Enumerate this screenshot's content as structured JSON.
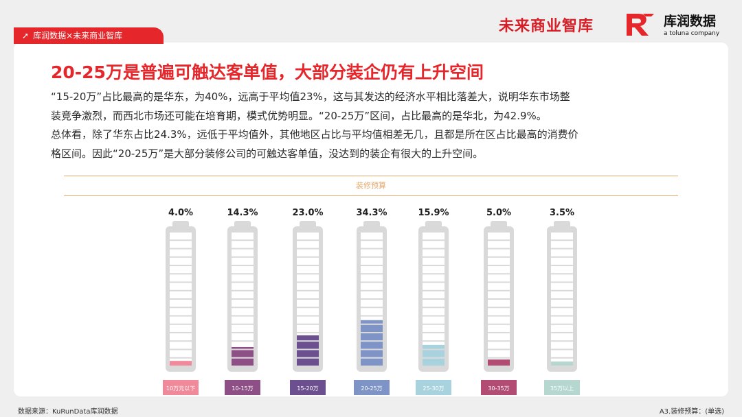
{
  "header": {
    "tag_label": "库润数据×未来商业智库",
    "brand_left": "未来商业智库",
    "brand_right": "库润数据",
    "brand_right_sub": "a toluna company"
  },
  "main": {
    "title": "20-25万是普遍可触达客单值，大部分装企仍有上升空间",
    "paragraph_lines": [
      "“15-20万”占比最高的是华东，为40%，远高于平均值23%，这与其发达的经济水平相比落差大，说明华东市场整",
      "装竞争激烈，而西北市场还可能在培育期，模式优势明显。“20-25万”区间，占比最高的是华北，为42.9%。",
      "总体看，除了华东占比24.3%，远低于平均值外，其他地区占比与平均值相差无几，且都是所在区占比最高的消费价",
      "格区间。因此“20-25万”是大部分装修公司的可触达客单值，没达到的装企有很大的上升空间。"
    ]
  },
  "chart_data": {
    "type": "bar",
    "title": "装修预算",
    "categories": [
      "10万元以下",
      "10-15万",
      "15-20万",
      "20-25万",
      "25-30万",
      "30-35万",
      "35万以上"
    ],
    "values": [
      4.0,
      14.3,
      23.0,
      34.3,
      15.9,
      5.0,
      3.5
    ],
    "value_labels": [
      "4.0%",
      "14.3%",
      "23.0%",
      "34.3%",
      "15.9%",
      "5.0%",
      "3.5%"
    ],
    "unit": "%",
    "segments_per_bar": 16,
    "colors": [
      "#f08a9a",
      "#8e4f86",
      "#6c4f8e",
      "#7e93c6",
      "#a9d2df",
      "#b24c72",
      "#b5d7cf"
    ],
    "max_value": 100
  },
  "footer": {
    "source": "数据来源：KuRunData库润数据",
    "question": "A3.装修预算：(单选)"
  }
}
